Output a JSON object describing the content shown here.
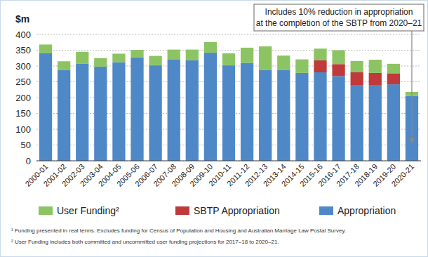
{
  "chart_data": {
    "type": "bar",
    "stacked": true,
    "grid": true,
    "legend": "bottom",
    "y_label": "$m",
    "annotations": [
      "Includes 10% reduction in appropriation",
      "at the completion of the SBTP from 2020–21"
    ],
    "footnotes": [
      "¹ Funding presented in real terms. Excludes funding for Census of Population and Housing and Australian Marriage Law Postal Survey.",
      "² User Funding includes both committed and uncommitted user funding projections for 2017–18 to 2020–21."
    ],
    "categories": [
      "2000-01",
      "2001-02",
      "2002-03",
      "2003-04",
      "2004-05",
      "2005-06",
      "2006-07",
      "2007-08",
      "2008-09",
      "2009-10",
      "2010-11",
      "2011-12",
      "2012-13",
      "2013-14",
      "2014-15",
      "2015-16",
      "2016-17",
      "2017-18",
      "2018-19",
      "2019-20",
      "2020-21"
    ],
    "ylim": [
      0,
      400
    ],
    "yticks": [
      0,
      50,
      100,
      150,
      200,
      250,
      300,
      350,
      400
    ],
    "series": [
      {
        "name": "Appropriation",
        "color": "#4f88c6",
        "values": [
          340,
          288,
          308,
          298,
          312,
          327,
          302,
          320,
          318,
          342,
          302,
          310,
          288,
          288,
          278,
          280,
          268,
          240,
          240,
          242,
          205
        ]
      },
      {
        "name": "SBTP Appropriation",
        "color": "#c0393b",
        "values": [
          0,
          0,
          0,
          0,
          0,
          0,
          0,
          0,
          0,
          0,
          0,
          0,
          0,
          0,
          0,
          38,
          38,
          40,
          38,
          35,
          0
        ]
      },
      {
        "name": "User Funding²",
        "color": "#8dc463",
        "values": [
          28,
          27,
          37,
          27,
          27,
          24,
          30,
          32,
          34,
          34,
          38,
          48,
          74,
          45,
          43,
          37,
          44,
          36,
          42,
          30,
          13
        ]
      }
    ]
  }
}
